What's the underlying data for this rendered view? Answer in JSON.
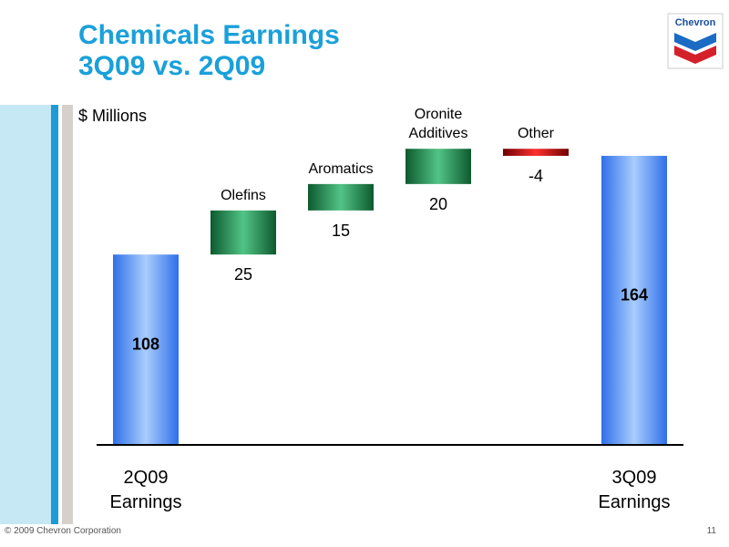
{
  "slide": {
    "title_line1": "Chemicals Earnings",
    "title_line2": "3Q09 vs. 2Q09",
    "logo_text": "Chevron",
    "copyright": "© 2009 Chevron Corporation",
    "page_number": "11"
  },
  "colors": {
    "title": "#1aa0da",
    "total_bar": "#4d8df2",
    "increase_bar": "#2e9a5e",
    "decrease_bar": "#cc1111"
  },
  "chart_data": {
    "type": "waterfall",
    "unit_label": "$ Millions",
    "ylim": [
      0,
      180
    ],
    "start": {
      "label": [
        "2Q09",
        "Earnings"
      ],
      "value": 108
    },
    "steps": [
      {
        "label": [
          "Olefins"
        ],
        "value": 25,
        "value_label": "25"
      },
      {
        "label": [
          "Aromatics"
        ],
        "value": 15,
        "value_label": "15"
      },
      {
        "label": [
          "Oronite",
          "Additives"
        ],
        "value": 20,
        "value_label": "20"
      },
      {
        "label": [
          "Other"
        ],
        "value": -4,
        "value_label": "-4"
      }
    ],
    "end": {
      "label": [
        "3Q09",
        "Earnings"
      ],
      "value": 164
    }
  }
}
